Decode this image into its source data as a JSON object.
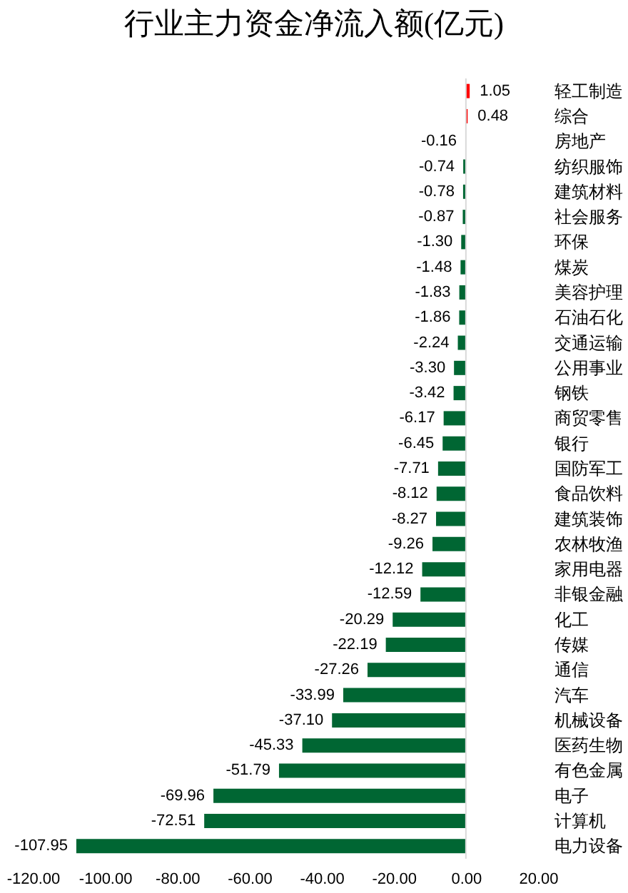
{
  "chart_data": {
    "type": "bar",
    "orientation": "horizontal",
    "title": "行业主力资金净流入额(亿元)",
    "categories": [
      "轻工制造",
      "综合",
      "房地产",
      "纺织服饰",
      "建筑材料",
      "社会服务",
      "环保",
      "煤炭",
      "美容护理",
      "石油石化",
      "交通运输",
      "公用事业",
      "钢铁",
      "商贸零售",
      "银行",
      "国防军工",
      "食品饮料",
      "建筑装饰",
      "农林牧渔",
      "家用电器",
      "非银金融",
      "化工",
      "传媒",
      "通信",
      "汽车",
      "机械设备",
      "医药生物",
      "有色金属",
      "电子",
      "计算机",
      "电力设备"
    ],
    "values": [
      1.05,
      0.48,
      -0.16,
      -0.74,
      -0.78,
      -0.87,
      -1.3,
      -1.48,
      -1.83,
      -1.86,
      -2.24,
      -3.3,
      -3.42,
      -6.17,
      -6.45,
      -7.71,
      -8.12,
      -8.27,
      -9.26,
      -12.12,
      -12.59,
      -20.29,
      -22.19,
      -27.26,
      -33.99,
      -37.1,
      -45.33,
      -51.79,
      -69.96,
      -72.51,
      -107.95
    ],
    "value_labels": [
      "1.05",
      "0.48",
      "-0.16",
      "-0.74",
      "-0.78",
      "-0.87",
      "-1.30",
      "-1.48",
      "-1.83",
      "-1.86",
      "-2.24",
      "-3.30",
      "-3.42",
      "-6.17",
      "-6.45",
      "-7.71",
      "-8.12",
      "-8.27",
      "-9.26",
      "-12.12",
      "-12.59",
      "-20.29",
      "-22.19",
      "-27.26",
      "-33.99",
      "-37.10",
      "-45.33",
      "-51.79",
      "-69.96",
      "-72.51",
      "-107.95"
    ],
    "colors": [
      "#ff0000",
      "#ff0000",
      "#006633",
      "#006633",
      "#006633",
      "#006633",
      "#006633",
      "#006633",
      "#006633",
      "#006633",
      "#006633",
      "#006633",
      "#006633",
      "#006633",
      "#006633",
      "#006633",
      "#006633",
      "#006633",
      "#006633",
      "#006633",
      "#006633",
      "#006633",
      "#006633",
      "#006633",
      "#006633",
      "#006633",
      "#006633",
      "#006633",
      "#006633",
      "#006633",
      "#006633"
    ],
    "xlim": [
      -120,
      20
    ],
    "xticks": [
      {
        "value": -120,
        "label": "-120.00"
      },
      {
        "value": -100,
        "label": "-100.00"
      },
      {
        "value": -80,
        "label": "-80.00"
      },
      {
        "value": -60,
        "label": "-60.00"
      },
      {
        "value": -40,
        "label": "-40.00"
      },
      {
        "value": -20,
        "label": "-20.00"
      },
      {
        "value": 0,
        "label": "0.00"
      },
      {
        "value": 20,
        "label": "20.00"
      }
    ],
    "ref_lines": [
      {
        "axis": "x",
        "value": 0,
        "color": "#d9d9d9"
      }
    ]
  }
}
